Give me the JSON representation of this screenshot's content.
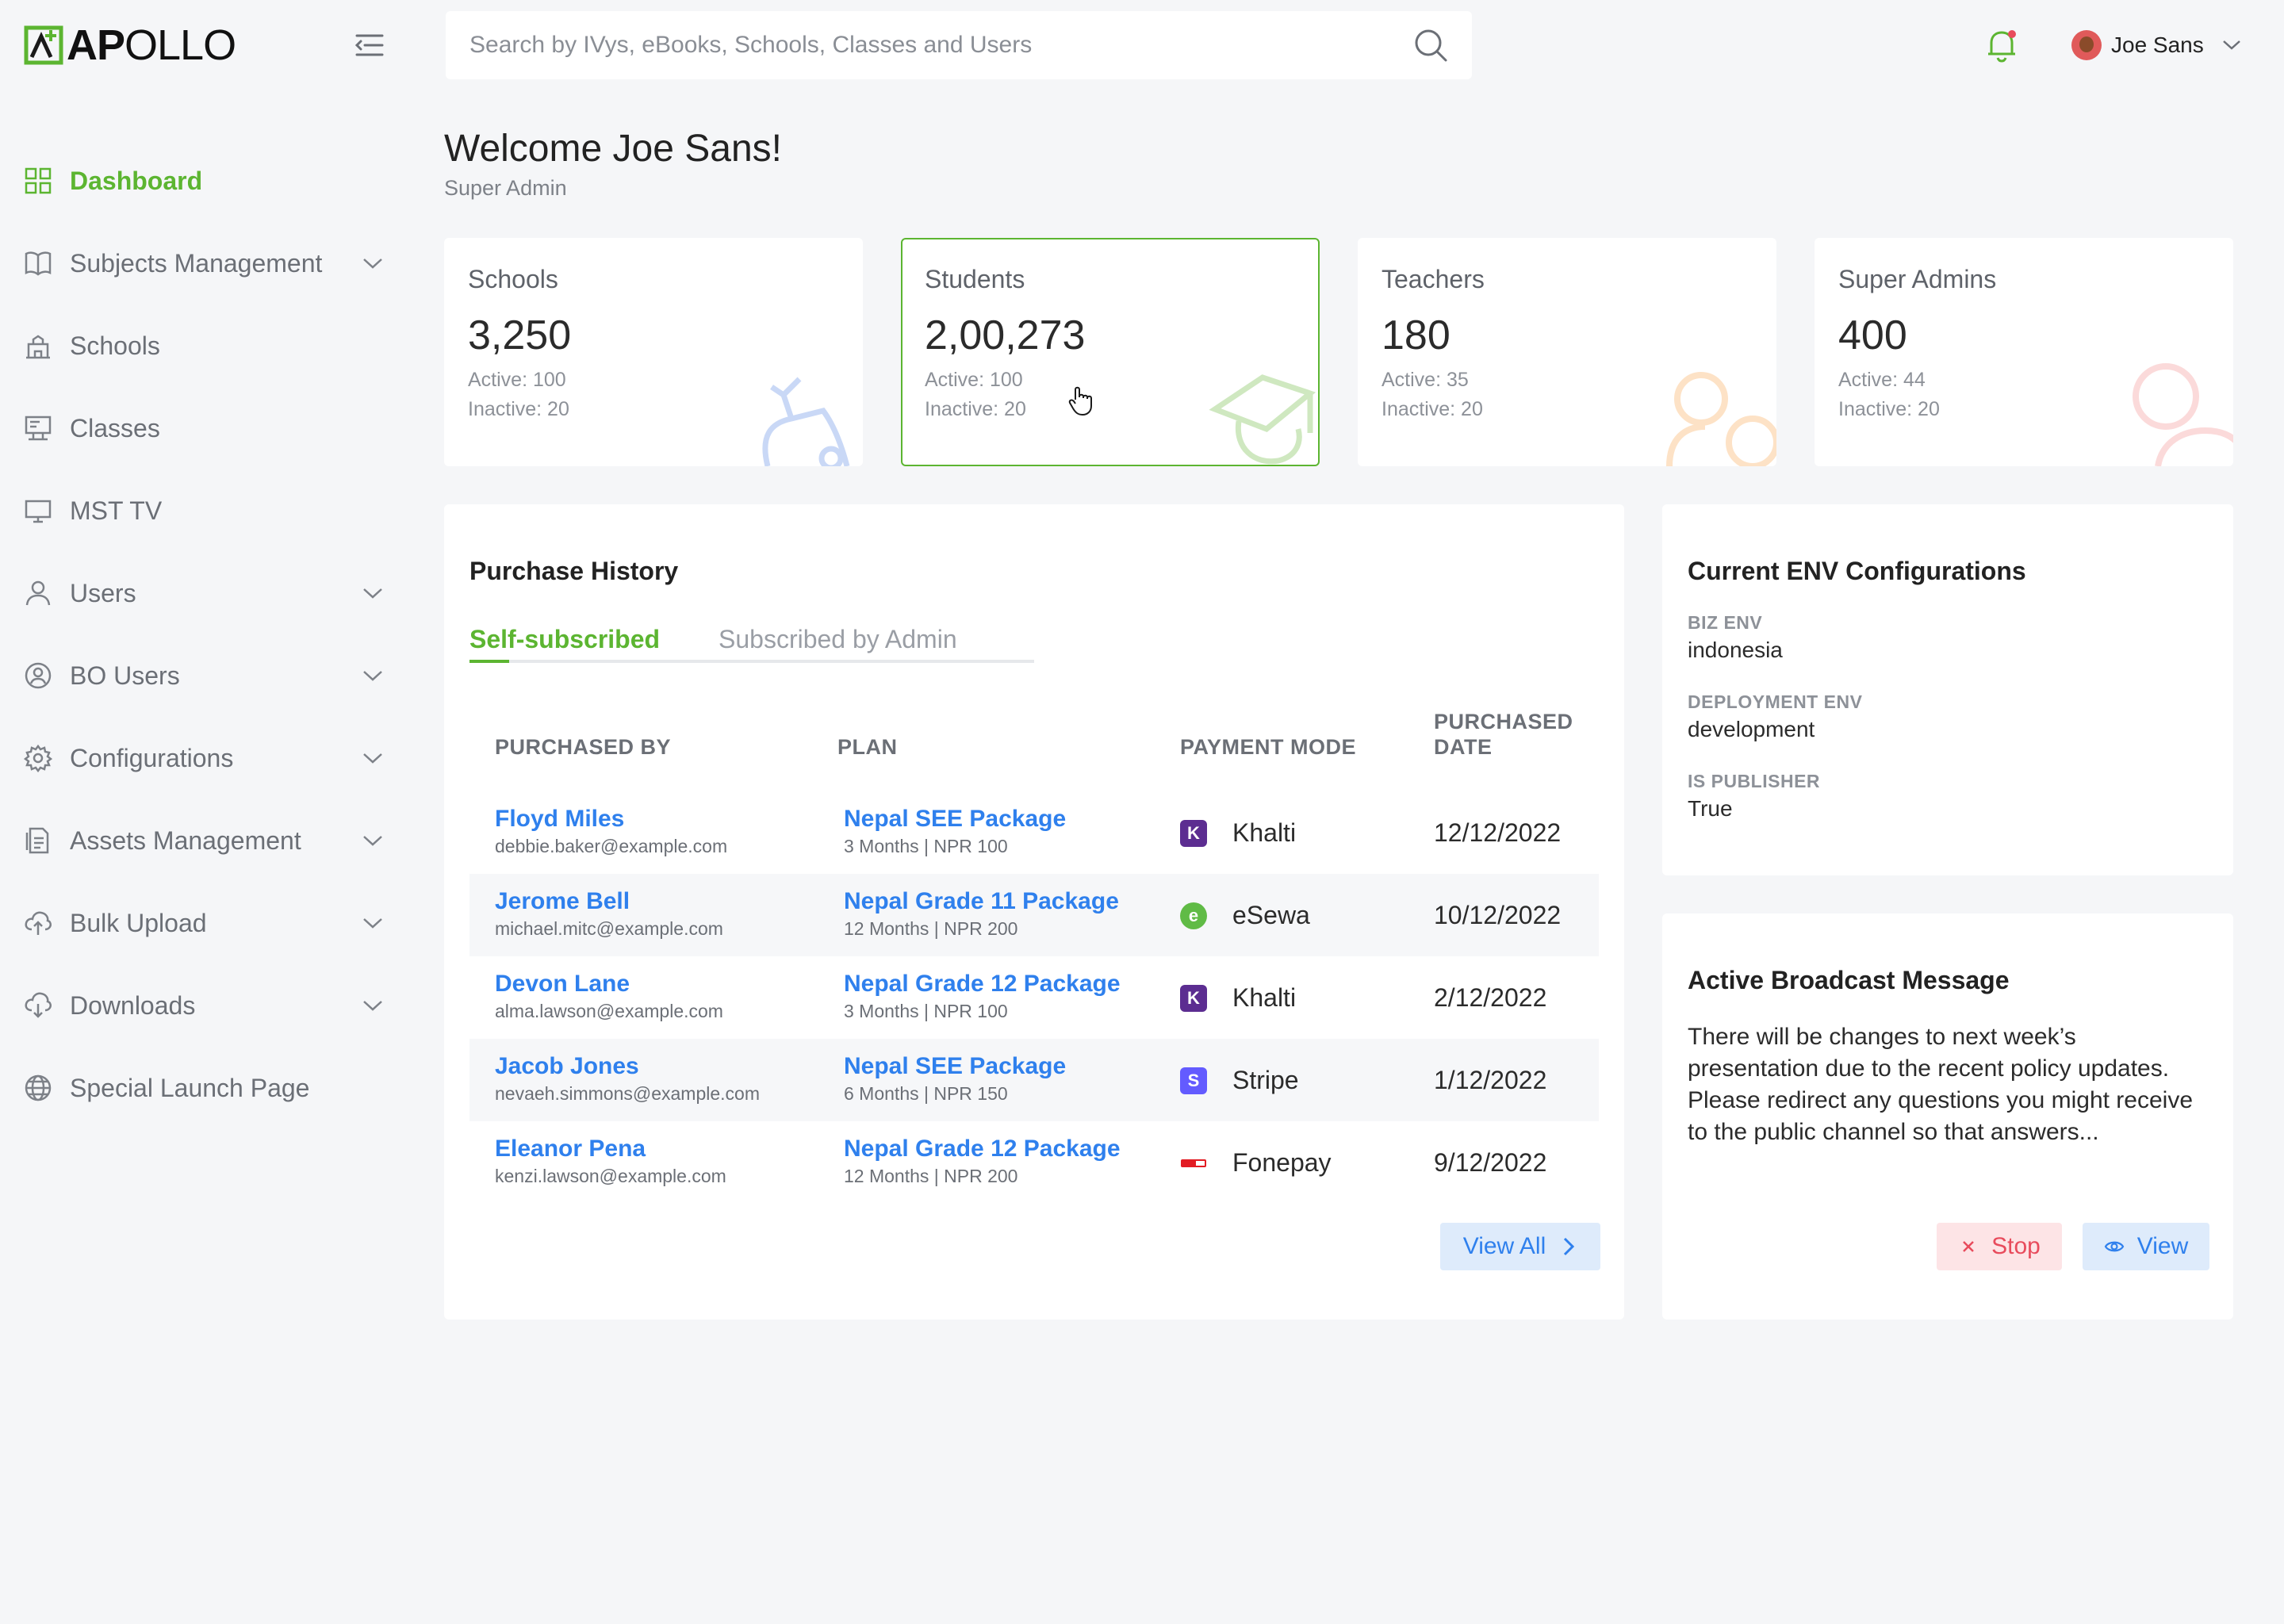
{
  "app": {
    "logo_text_bold": "AP",
    "logo_text_rest": "OLLO"
  },
  "colors": {
    "accent_green": "#5cb531",
    "link_blue": "#2f80ed",
    "danger_red": "#e84b5c"
  },
  "sidebar": {
    "items": [
      {
        "label": "Dashboard",
        "icon": "grid-icon",
        "active": true,
        "expandable": false
      },
      {
        "label": "Subjects Management",
        "icon": "book-icon",
        "expandable": true
      },
      {
        "label": "Schools",
        "icon": "school-icon",
        "expandable": false
      },
      {
        "label": "Classes",
        "icon": "classroom-icon",
        "expandable": false
      },
      {
        "label": "MST TV",
        "icon": "monitor-icon",
        "expandable": false
      },
      {
        "label": "Users",
        "icon": "user-icon",
        "expandable": true
      },
      {
        "label": "BO Users",
        "icon": "user-circle-icon",
        "expandable": true
      },
      {
        "label": "Configurations",
        "icon": "gear-icon",
        "expandable": true
      },
      {
        "label": "Assets Management",
        "icon": "file-icon",
        "expandable": true
      },
      {
        "label": "Bulk Upload",
        "icon": "cloud-upload-icon",
        "expandable": true
      },
      {
        "label": "Downloads",
        "icon": "cloud-download-icon",
        "expandable": true
      },
      {
        "label": "Special Launch Page",
        "icon": "globe-icon",
        "expandable": false
      }
    ]
  },
  "header": {
    "search_placeholder": "Search by IVys, eBooks, Schools, Classes and Users",
    "user_name": "Joe Sans"
  },
  "welcome": {
    "title": "Welcome Joe Sans!",
    "role": "Super Admin"
  },
  "stats": [
    {
      "title": "Schools",
      "value": "3,250",
      "active": "Active: 100",
      "inactive": "Inactive: 20",
      "selected": false
    },
    {
      "title": "Students",
      "value": "2,00,273",
      "active": "Active: 100",
      "inactive": "Inactive: 20",
      "selected": true
    },
    {
      "title": "Teachers",
      "value": "180",
      "active": "Active: 35",
      "inactive": "Inactive: 20",
      "selected": false
    },
    {
      "title": "Super Admins",
      "value": "400",
      "active": "Active: 44",
      "inactive": "Inactive: 20",
      "selected": false
    }
  ],
  "purchase_history": {
    "title": "Purchase History",
    "tabs": [
      {
        "label": "Self-subscribed",
        "active": true
      },
      {
        "label": "Subscribed by Admin",
        "active": false
      }
    ],
    "columns": [
      "PURCHASED BY",
      "PLAN",
      "PAYMENT MODE",
      "PURCHASED DATE"
    ],
    "rows": [
      {
        "name": "Floyd Miles",
        "email": "debbie.baker@example.com",
        "plan": "Nepal SEE Package",
        "plan_detail": "3 Months | NPR 100",
        "payment": "Khalti",
        "payment_icon": "khalti-icon",
        "date": "12/12/2022"
      },
      {
        "name": "Jerome Bell",
        "email": "michael.mitc@example.com",
        "plan": "Nepal Grade 11 Package",
        "plan_detail": "12 Months | NPR 200",
        "payment": "eSewa",
        "payment_icon": "esewa-icon",
        "date": "10/12/2022"
      },
      {
        "name": "Devon Lane",
        "email": "alma.lawson@example.com",
        "plan": "Nepal Grade 12 Package",
        "plan_detail": "3 Months | NPR 100",
        "payment": "Khalti",
        "payment_icon": "khalti-icon",
        "date": "2/12/2022"
      },
      {
        "name": "Jacob Jones",
        "email": "nevaeh.simmons@example.com",
        "plan": "Nepal SEE Package",
        "plan_detail": "6 Months | NPR 150",
        "payment": "Stripe",
        "payment_icon": "stripe-icon",
        "date": "1/12/2022"
      },
      {
        "name": "Eleanor Pena",
        "email": "kenzi.lawson@example.com",
        "plan": "Nepal Grade 12 Package",
        "plan_detail": "12 Months | NPR 200",
        "payment": "Fonepay",
        "payment_icon": "fonepay-icon",
        "date": "9/12/2022"
      }
    ],
    "view_all_label": "View All"
  },
  "env_config": {
    "title": "Current ENV Configurations",
    "items": [
      {
        "label": "BIZ ENV",
        "value": "indonesia"
      },
      {
        "label": "DEPLOYMENT ENV",
        "value": "development"
      },
      {
        "label": "IS PUBLISHER",
        "value": "True"
      }
    ]
  },
  "broadcast": {
    "title": "Active Broadcast Message",
    "message": "There will be changes to next week’s presentation due to the recent policy updates. Please redirect any questions you might receive to the public channel so that answers...",
    "stop_label": "Stop",
    "view_label": "View"
  }
}
